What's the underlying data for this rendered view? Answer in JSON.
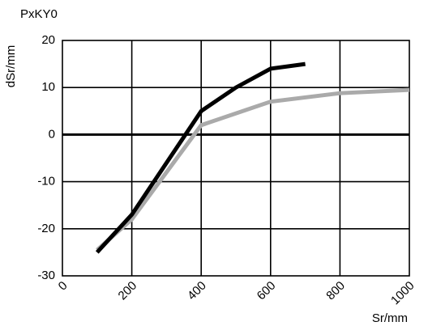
{
  "chart_data": {
    "type": "line",
    "title": "PxKY0",
    "xlabel": "Sr/mm",
    "ylabel": "dSr/mm",
    "xlim": [
      0,
      1000
    ],
    "ylim": [
      -30,
      20
    ],
    "xticks": [
      "0",
      "200",
      "400",
      "600",
      "800",
      "1000"
    ],
    "xtick_values": [
      0,
      200,
      400,
      600,
      800,
      1000
    ],
    "yticks": [
      "20",
      "10",
      "0",
      "-10",
      "-20",
      "-30"
    ],
    "ytick_values": [
      20,
      10,
      0,
      -10,
      -20,
      -30
    ],
    "grid": true,
    "series": [
      {
        "color": "#aaaaaa",
        "x": [
          100,
          200,
          400,
          600,
          800,
          1000
        ],
        "y": [
          -24.5,
          -18,
          2,
          7,
          8.8,
          9.5
        ]
      },
      {
        "color": "#000000",
        "x": [
          100,
          200,
          400,
          500,
          600,
          700
        ],
        "y": [
          -25,
          -17,
          5,
          10,
          14,
          15
        ]
      }
    ]
  }
}
